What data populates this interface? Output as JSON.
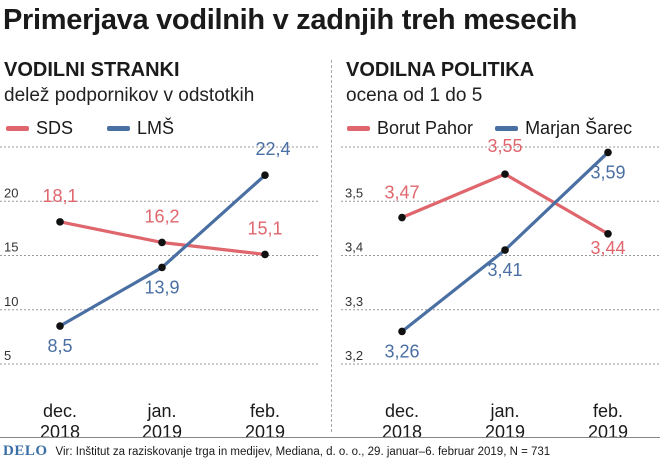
{
  "title": "Primerjava vodilnih v zadnjih treh mesecih",
  "source": "Vir: Inštitut za raziskovanje trga in medijev, Mediana, d. o. o., 29. januar–6. februar 2019, N = 731",
  "logo": "DELO",
  "colors": {
    "red": "#e0666d",
    "blue": "#4a6fa3",
    "grid": "#9a9a9a"
  },
  "chart_data": [
    {
      "type": "line",
      "title": "VODILNI STRANKI",
      "subtitle": "delež podpornikov v odstotkih",
      "categories": [
        "dec.\n2018",
        "jan.\n2019",
        "feb.\n2019"
      ],
      "category_lines": [
        [
          "dec.",
          "2018"
        ],
        [
          "jan.",
          "2019"
        ],
        [
          "feb.",
          "2019"
        ]
      ],
      "ylim": [
        4,
        25
      ],
      "yticks": [
        5,
        10,
        15,
        20
      ],
      "ytick_labels": [
        "5",
        "10",
        "15",
        "20"
      ],
      "gridlines": [
        5,
        10,
        15,
        20,
        25
      ],
      "series": [
        {
          "name": "SDS",
          "color": "red",
          "values": [
            18.1,
            16.2,
            15.1
          ],
          "labels": [
            "18,1",
            "16,2",
            "15,1"
          ]
        },
        {
          "name": "LMŠ",
          "color": "blue",
          "values": [
            8.5,
            13.9,
            22.4
          ],
          "labels": [
            "8,5",
            "13,9",
            "22,4"
          ]
        }
      ]
    },
    {
      "type": "line",
      "title": "VODILNA POLITIKA",
      "subtitle": "ocena od 1 do 5",
      "categories": [
        "dec.\n2018",
        "jan.\n2019",
        "feb.\n2019"
      ],
      "category_lines": [
        [
          "dec.",
          "2018"
        ],
        [
          "jan.",
          "2019"
        ],
        [
          "feb.",
          "2019"
        ]
      ],
      "ylim": [
        3.2,
        3.6
      ],
      "yticks": [
        3.2,
        3.3,
        3.4,
        3.5
      ],
      "ytick_labels": [
        "3,2",
        "3,3",
        "3,4",
        "3,5"
      ],
      "gridlines": [
        3.2,
        3.3,
        3.4,
        3.5,
        3.6
      ],
      "series": [
        {
          "name": "Borut Pahor",
          "color": "red",
          "values": [
            3.47,
            3.55,
            3.44
          ],
          "labels": [
            "3,47",
            "3,55",
            "3,44"
          ]
        },
        {
          "name": "Marjan Šarec",
          "color": "blue",
          "values": [
            3.26,
            3.41,
            3.59
          ],
          "labels": [
            "3,26",
            "3,41",
            "3,59"
          ]
        }
      ]
    }
  ]
}
